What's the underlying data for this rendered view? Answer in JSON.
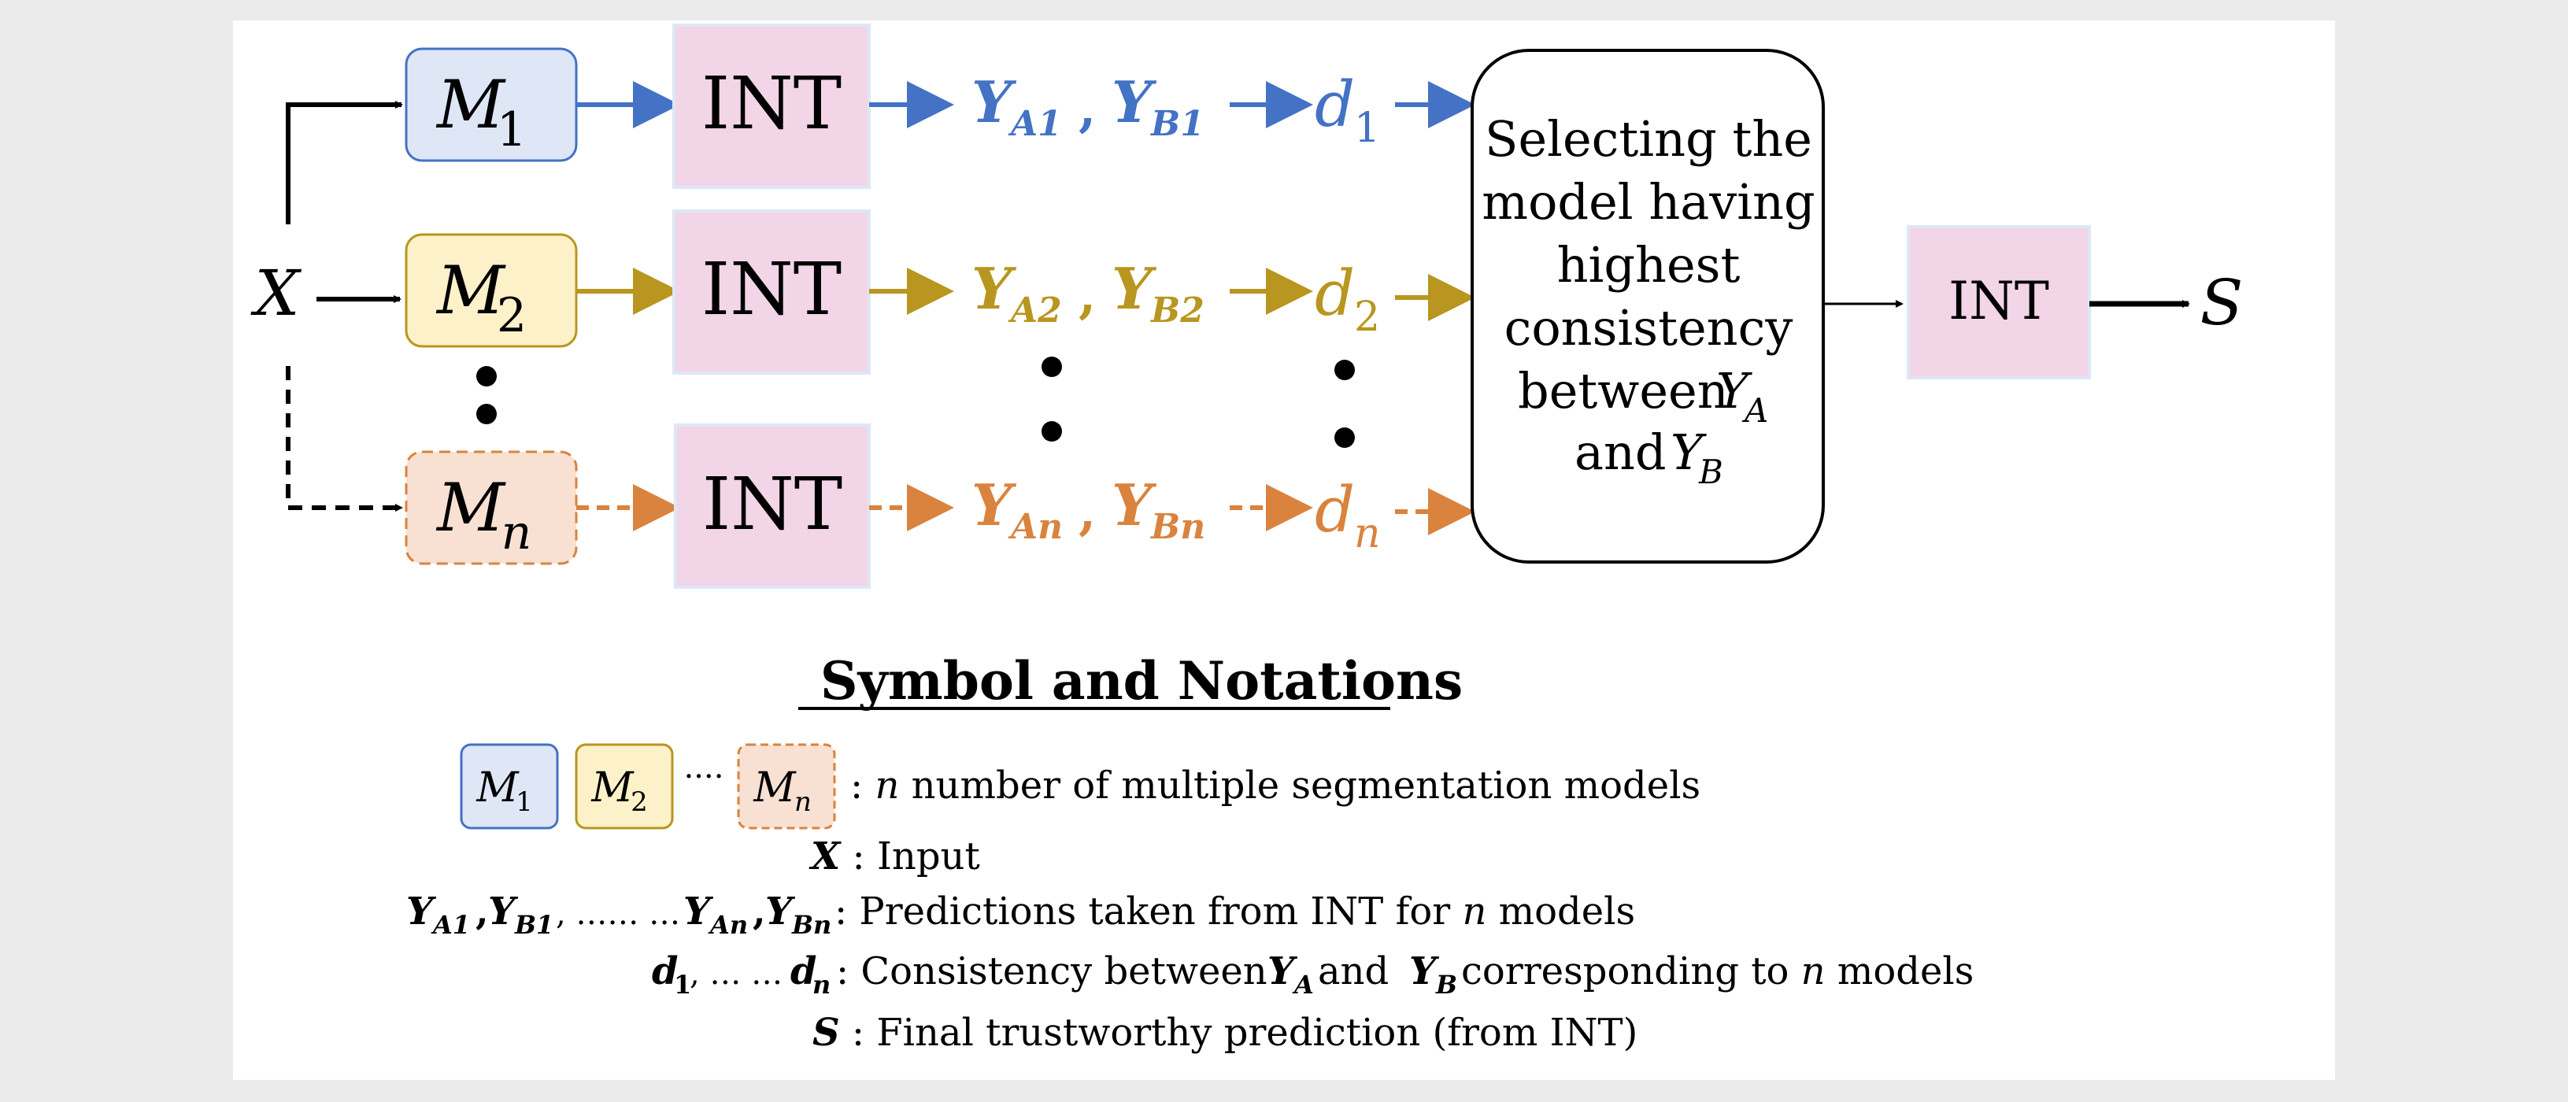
{
  "colors": {
    "blue": "#4472c4",
    "gold": "#b8961f",
    "orange": "#d9833f",
    "int_fill": "#f2d5e7",
    "int_stroke": "#dde7f5",
    "m1_fill": "#dfe7f6",
    "m2_fill": "#fdf1c9",
    "mn_fill": "#f8e1d3",
    "black": "#000000"
  },
  "flow": {
    "input": "X",
    "output": "S",
    "int": "INT",
    "models": [
      {
        "sym": "M",
        "sub": "1",
        "ya": "Y",
        "ya_sub": "A1",
        "yb": "Y",
        "yb_sub": "B1",
        "d": "d",
        "d_sub": "1"
      },
      {
        "sym": "M",
        "sub": "2",
        "ya": "Y",
        "ya_sub": "A2",
        "yb": "Y",
        "yb_sub": "B2",
        "d": "d",
        "d_sub": "2"
      },
      {
        "sym": "M",
        "sub": "n",
        "ya": "Y",
        "ya_sub": "An",
        "yb": "Y",
        "yb_sub": "Bn",
        "d": "d",
        "d_sub": "n"
      }
    ],
    "selector": {
      "line1": "Selecting the",
      "line2": "model having",
      "line3": "highest",
      "line4": "consistency",
      "line5": "between",
      "line5_sym": "Y",
      "line5_sub": "A",
      "line6": "and",
      "line6_sym": "Y",
      "line6_sub": "B"
    }
  },
  "legend": {
    "title": "Symbol and Notations",
    "models_ellipsis": "····",
    "models_text": ": ",
    "models_n": "n",
    "models_rest": " number of multiple segmentation models",
    "x_sym": "X",
    "x_text": " : Input",
    "pred_text": " : Predictions taken from INT for ",
    "pred_n": "n",
    "pred_rest": " models",
    "pred_mid": ", …… …",
    "cons_mid": ", … …",
    "cons_text": " : Consistency between ",
    "cons_and": " and ",
    "cons_rest": " corresponding to ",
    "cons_n": "n",
    "cons_end": " models",
    "s_sym": "S",
    "s_text": " : Final trustworthy prediction (from INT)"
  }
}
